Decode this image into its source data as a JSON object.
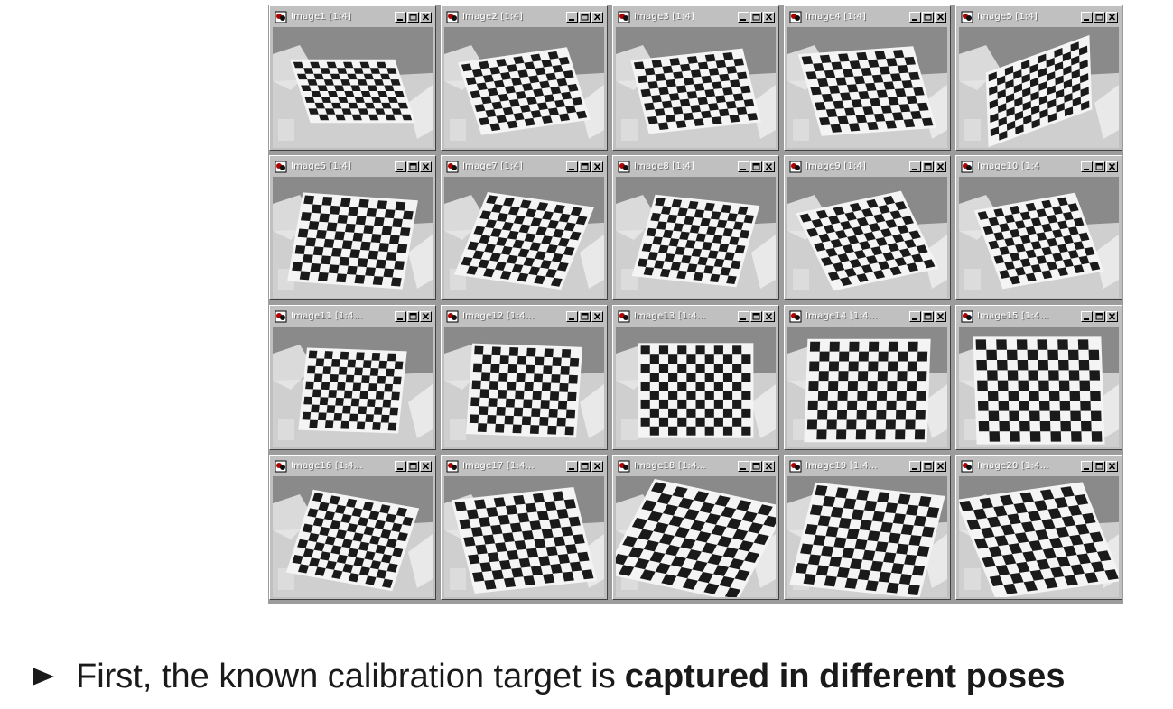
{
  "calibration_images": [
    {
      "title": "Image1 [1:4]",
      "rotation": 0,
      "skew": 18,
      "tilt": 0.7,
      "scale": 0.78
    },
    {
      "title": "Image2 [1:4]",
      "rotation": -8,
      "skew": 10,
      "tilt": 0.8,
      "scale": 0.82
    },
    {
      "title": "Image3 [1:4]",
      "rotation": -6,
      "skew": 8,
      "tilt": 0.78,
      "scale": 0.84
    },
    {
      "title": "Image4 [1:4]",
      "rotation": -4,
      "skew": 12,
      "tilt": 0.85,
      "scale": 0.86
    },
    {
      "title": "Image5 [1:4]",
      "rotation": -20,
      "skew": -18,
      "tilt": 0.75,
      "scale": 0.82
    },
    {
      "title": "Image6 [1:4]",
      "rotation": 4,
      "skew": -6,
      "tilt": 0.92,
      "scale": 0.86
    },
    {
      "title": "Image7 [1:4]",
      "rotation": 8,
      "skew": -14,
      "tilt": 0.95,
      "scale": 0.8
    },
    {
      "title": "Image8 [1:4]",
      "rotation": 6,
      "skew": -10,
      "tilt": 0.94,
      "scale": 0.78
    },
    {
      "title": "Image9 [1:4]",
      "rotation": -12,
      "skew": 14,
      "tilt": 0.92,
      "scale": 0.8
    },
    {
      "title": "Image10 [1:4",
      "rotation": -10,
      "skew": 10,
      "tilt": 0.95,
      "scale": 0.76
    },
    {
      "title": "Image11 [1:4...",
      "rotation": 2,
      "skew": -4,
      "tilt": 0.98,
      "scale": 0.74
    },
    {
      "title": "Image12 [1:4...",
      "rotation": 2,
      "skew": -2,
      "tilt": 0.98,
      "scale": 0.82
    },
    {
      "title": "Image13 [1:4...",
      "rotation": 0,
      "skew": 0,
      "tilt": 0.98,
      "scale": 0.86
    },
    {
      "title": "Image14 [1:4...",
      "rotation": 0,
      "skew": -2,
      "tilt": 1.0,
      "scale": 0.92
    },
    {
      "title": "Image15 [1:4...",
      "rotation": 0,
      "skew": 2,
      "tilt": 1.0,
      "scale": 0.96
    },
    {
      "title": "Image16 [1:4...",
      "rotation": 10,
      "skew": -8,
      "tilt": 0.95,
      "scale": 0.8
    },
    {
      "title": "Image17 [1:4...",
      "rotation": -6,
      "skew": 8,
      "tilt": 0.92,
      "scale": 0.92
    },
    {
      "title": "Image18 [1:4...",
      "rotation": 12,
      "skew": -16,
      "tilt": 0.9,
      "scale": 1.02
    },
    {
      "title": "Image19 [1:4...",
      "rotation": 6,
      "skew": -8,
      "tilt": 0.95,
      "scale": 0.98
    },
    {
      "title": "Image20 [1:4...",
      "rotation": -8,
      "skew": 14,
      "tilt": 0.96,
      "scale": 0.96
    }
  ],
  "window_buttons": [
    "minimize-icon",
    "maximize-icon",
    "close-icon"
  ],
  "caption": {
    "bullet_icon": "triangle-right-bullet-icon",
    "text_normal": "First, the known calibration target is",
    "text_bold": "captured in different poses"
  },
  "colors": {
    "window_chrome": "#c0c0c0",
    "background_gray": "#8a8a8a",
    "table_gray": "#cfcfcf",
    "checker_dark": "#1a1a1a",
    "checker_light": "#f4f4f4",
    "caption_text": "#1a1a1a"
  }
}
